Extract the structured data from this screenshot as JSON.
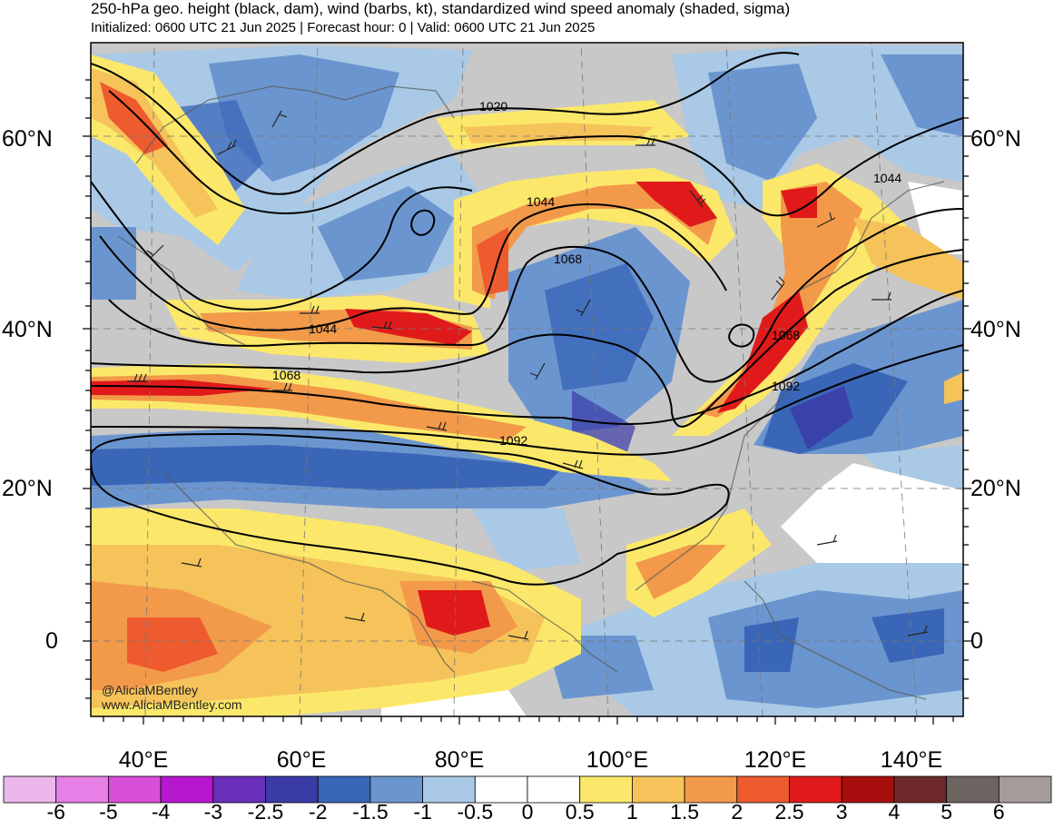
{
  "header": {
    "title": "250-hPa geo. height (black, dam), wind (barbs, kt), standardized wind speed anomaly (shaded, sigma)",
    "subtitle": "Initialized: 0600 UTC 21 Jun 2025 | Forecast hour: 0 | Valid: 0600 UTC 21 Jun 2025"
  },
  "axes": {
    "lat_labels_left": [
      "60°N",
      "40°N",
      "20°N",
      "0"
    ],
    "lat_labels_right": [
      "60°N",
      "40°N",
      "20°N",
      "0"
    ],
    "lon_labels": [
      "40°E",
      "60°E",
      "80°E",
      "100°E",
      "120°E",
      "140°E"
    ]
  },
  "contour_labels": [
    "1020",
    "1044",
    "1068",
    "1044",
    "1068",
    "1092",
    "1044",
    "1068",
    "1092"
  ],
  "credit": {
    "handle": "@AliciaMBentley",
    "site": "www.AliciaMBentley.com"
  },
  "colorbar": {
    "values": [
      "-6",
      "-5",
      "-4",
      "-3",
      "-2.5",
      "-2",
      "-1.5",
      "-1",
      "-0.5",
      "0",
      "0.5",
      "1",
      "1.5",
      "2",
      "2.5",
      "3",
      "4",
      "5",
      "6"
    ],
    "colors": [
      "#ecb8ec",
      "#e680e6",
      "#d94ed9",
      "#b817d0",
      "#6a2fb8",
      "#3b3ba6",
      "#3a66b8",
      "#6b95cf",
      "#a9c9e6",
      "#ffffff",
      "#ffffff",
      "#fbe86a",
      "#f5c35a",
      "#f29a4a",
      "#ee5b2e",
      "#e01a1a",
      "#a80e0e",
      "#6e2a2a",
      "#6e6462",
      "#a59c9a"
    ]
  },
  "colors": {
    "land_neutral": "#c8c8c8",
    "ocean_neutral": "#ffffff",
    "height_contour": "#000000"
  }
}
